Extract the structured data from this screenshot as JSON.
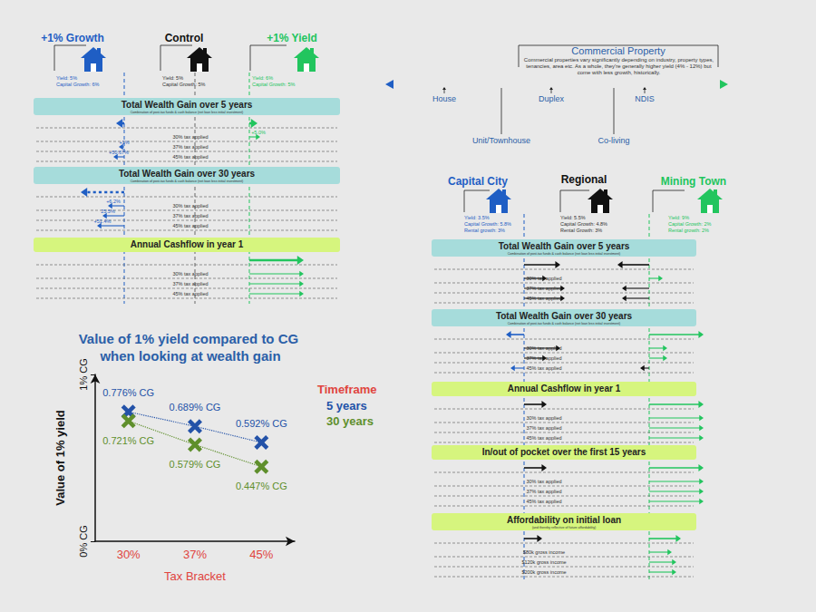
{
  "left_panel": {
    "columns": [
      {
        "title": "+1% Growth",
        "color": "#1f5ec4",
        "details": [
          "Yield: 5%",
          "Capital Growth: 6%"
        ]
      },
      {
        "title": "Control",
        "color": "#111111",
        "details": [
          "Yield: 5%",
          "Capital Growth: 5%"
        ]
      },
      {
        "title": "+1% Yield",
        "color": "#22c55e",
        "details": [
          "Yield: 6%",
          "Capital Growth: 5%"
        ]
      }
    ],
    "sections": [
      {
        "title": "Total Wealth Gain over 5 years",
        "subtitle": "Combination of post-tax funds & cash balance (net loan less initial investment)",
        "color": "#a6dcdb",
        "rows": [
          {
            "label": null,
            "arrows": [
              {
                "value": -0.15
              },
              {
                "value": 0.15
              }
            ]
          },
          {
            "label": "30% tax applied",
            "arrows": [
              {
                "value": 0.2,
                "label": "+5.0%"
              }
            ]
          },
          {
            "label": "37% tax applied",
            "arrows": [
              {
                "value": -0.1,
                "label": "+1%"
              }
            ]
          },
          {
            "label": "45% tax applied",
            "arrows": [
              {
                "value": -0.2,
                "label": "+50.67%"
              }
            ]
          }
        ]
      },
      {
        "title": "Total Wealth Gain over 30 years",
        "subtitle": "Combination of post-tax funds & cash balance (net loan less initial investment)",
        "color": "#a6dcdb",
        "rows": [
          {
            "label": null,
            "arrows": [
              {
                "value": -0.8,
                "line_style": "dotted"
              }
            ]
          },
          {
            "label": "30% tax applied",
            "arrows": [
              {
                "value": -0.3,
                "label": "+6.2%"
              }
            ]
          },
          {
            "label": "37% tax applied",
            "arrows": [
              {
                "value": -0.4,
                "label": "25.5%"
              }
            ]
          },
          {
            "label": "45% tax applied",
            "arrows": [
              {
                "value": -0.5,
                "label": "+51.4%"
              }
            ]
          }
        ]
      },
      {
        "title": "Annual Cashflow in year 1",
        "subtitle": null,
        "color": "#d6f57e",
        "rows": [
          {
            "label": null,
            "arrows": [
              {
                "value": 1.0
              }
            ]
          },
          {
            "label": "30% tax applied",
            "arrows": [
              {
                "value": 1.0
              }
            ]
          },
          {
            "label": "37% tax applied",
            "arrows": [
              {
                "value": 1.0
              }
            ]
          },
          {
            "label": "45% tax applied",
            "arrows": [
              {
                "value": 1.0
              }
            ]
          }
        ]
      }
    ]
  },
  "property_spectrum": {
    "commercial_title": "Commercial Property",
    "commercial_text": "Commercial properties vary significantly depending on industry, property types, tenancies, area etc.  As a whole, they're generally higher yield (4% - 12%) but come with less growth, historically.",
    "top_labels": [
      "House",
      "Duplex",
      "NDIS"
    ],
    "bottom_labels": [
      "Unit/Townhouse",
      "Co-living"
    ]
  },
  "right_panel": {
    "columns": [
      {
        "title": "Capital City",
        "color": "#1f5ec4",
        "details": [
          "Yield: 3.5%",
          "Capital Growth: 5.8%",
          "Rental growth: 3%"
        ]
      },
      {
        "title": "Regional",
        "color": "#111111",
        "details": [
          "Yield: 5.5%",
          "Capital Growth: 4.8%",
          "Rental Growth: 3%"
        ]
      },
      {
        "title": "Mining Town",
        "color": "#22c55e",
        "details": [
          "Yield: 9%",
          "Capital Growth: 2%",
          "Rental growth: 2%"
        ]
      }
    ],
    "sections": [
      {
        "title": "Total Wealth Gain over 5 years",
        "subtitle": "Combination of post-tax funds & cash balance (net loan less initial investment)",
        "color": "#a6dcdb",
        "rows": [
          {
            "label": null,
            "capital_side": 0.8,
            "mining_side": -0.7
          },
          {
            "label": "30% tax applied",
            "capital_side": 0.5,
            "mining_side": 0.3
          },
          {
            "label": "37% tax applied",
            "capital_side": 0.9,
            "mining_side": -0.6
          },
          {
            "label": "45% tax applied",
            "capital_side": 0.9,
            "mining_side": -0.6
          }
        ]
      },
      {
        "title": "Total Wealth Gain over 30 years",
        "subtitle": "Combination of post-tax funds & cash balance (net loan less initial investment)",
        "color": "#a6dcdb",
        "rows": [
          {
            "label": null,
            "capital_side": -0.4,
            "mining_side": 1.2
          },
          {
            "label": "30% tax applied",
            "capital_side": 0.8,
            "mining_side": 0.4
          },
          {
            "label": "37% tax applied",
            "capital_side": 0.5,
            "mining_side": 0.4
          },
          {
            "label": "45% tax applied",
            "capital_side": -0.3,
            "mining_side": -0.2
          }
        ]
      },
      {
        "title": "Annual Cashflow in year 1",
        "subtitle": null,
        "color": "#d6f57e",
        "rows": [
          {
            "label": null,
            "capital_side": 0.5,
            "mining_side": 1.2
          },
          {
            "label": "30% tax applied",
            "capital_side": null,
            "mining_side": 1.2
          },
          {
            "label": "37% tax applied",
            "capital_side": null,
            "mining_side": 1.2
          },
          {
            "label": "45% tax applied",
            "capital_side": null,
            "mining_side": 1.2
          }
        ]
      },
      {
        "title": "In/out of pocket over the first 15 years",
        "subtitle": null,
        "color": "#d6f57e",
        "rows": [
          {
            "label": null,
            "capital_side": 0.5,
            "mining_side": 1.2
          },
          {
            "label": "30% tax applied",
            "capital_side": null,
            "mining_side": 1.2
          },
          {
            "label": "37% tax applied",
            "capital_side": null,
            "mining_side": 1.2
          },
          {
            "label": "45% tax applied",
            "capital_side": null,
            "mining_side": 1.2
          }
        ]
      },
      {
        "title": "Affordability on initial loan",
        "subtitle": "(and thereby reflective of future affordability)",
        "color": "#d6f57e",
        "rows": [
          {
            "label": null,
            "capital_side": 0.4,
            "mining_side": 0.7
          },
          {
            "label": "$80k gross income",
            "capital_side": null,
            "mining_side": 0.5
          },
          {
            "label": "$120k gross income",
            "capital_side": null,
            "mining_side": 0.6
          },
          {
            "label": "$200k gross income",
            "capital_side": null,
            "mining_side": 0.6
          }
        ]
      }
    ]
  },
  "chart_data": {
    "type": "line",
    "title": "Value of 1% yield compared to CG when looking at wealth gain",
    "x_label": "Tax Bracket",
    "y_label": "Value of 1% yield",
    "categories": [
      "30%",
      "37%",
      "45%"
    ],
    "ylim": [
      0,
      1
    ],
    "yticks": [
      {
        "value": 0,
        "label": "0% CG"
      },
      {
        "value": 1,
        "label": "1% CG"
      }
    ],
    "grid": false,
    "legend": "right",
    "legend_title": "Timeframe",
    "data_labels": true,
    "marker": "x",
    "line_style": "dotted",
    "series": [
      {
        "name": "5 years",
        "color": "#2352a8",
        "values": [
          0.776,
          0.689,
          0.592
        ],
        "value_labels": [
          "0.776% CG",
          "0.689% CG",
          "0.592% CG"
        ]
      },
      {
        "name": "30 years",
        "color": "#5f8f2c",
        "values": [
          0.721,
          0.579,
          0.447
        ],
        "value_labels": [
          "0.721% CG",
          "0.579% CG",
          "0.447% CG"
        ]
      }
    ]
  }
}
